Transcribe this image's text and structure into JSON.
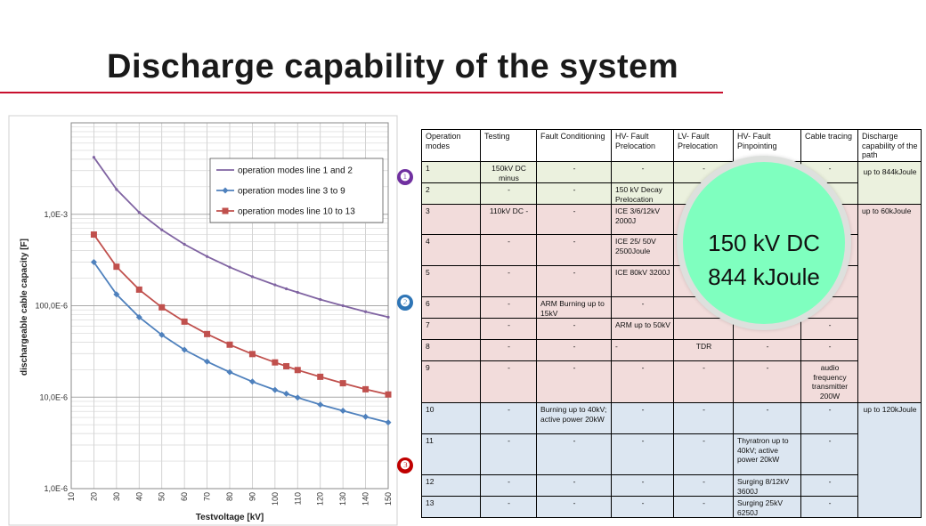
{
  "title": "Discharge capability of the system",
  "markers": [
    {
      "label": "❶",
      "color": "#7030a0"
    },
    {
      "label": "❷",
      "color": "#2e75b6"
    },
    {
      "label": "❸",
      "color": "#c00000"
    }
  ],
  "highlight": {
    "line1": "150 kV DC",
    "line2": "844 kJoule"
  },
  "chart_data": {
    "type": "line",
    "title": "",
    "xlabel": "Testvoltage [kV]",
    "ylabel": "dischargeable cable capacity [F]",
    "xlim": [
      10,
      150
    ],
    "ylim": [
      1e-06,
      0.01
    ],
    "yscale": "log",
    "xticks": [
      "10",
      "20",
      "30",
      "40",
      "50",
      "60",
      "70",
      "80",
      "90",
      "100",
      "110",
      "120",
      "130",
      "140",
      "150"
    ],
    "yticks": [
      "1,0E-6",
      "10,0E-6",
      "100,0E-6",
      "1,0E-3"
    ],
    "legend_position": "top-right",
    "grid": true,
    "series": [
      {
        "name": "operation modes line 1 and 2",
        "color": "#8064a2",
        "marker": "none",
        "x": [
          20,
          30,
          40,
          50,
          60,
          70,
          80,
          90,
          100,
          105,
          110,
          120,
          130,
          140,
          150
        ],
        "y": [
          0.0042,
          0.00187,
          0.00105,
          0.000675,
          0.000469,
          0.000345,
          0.000264,
          0.000208,
          0.000169,
          0.000153,
          0.00014,
          0.000117,
          0.0001,
          8.6e-05,
          7.5e-05
        ]
      },
      {
        "name": "operation modes line  3 to 9",
        "color": "#4f81bd",
        "marker": "diamond",
        "x": [
          20,
          30,
          40,
          50,
          60,
          70,
          80,
          90,
          100,
          105,
          110,
          120,
          130,
          140,
          150
        ],
        "y": [
          0.0003,
          0.000133,
          7.5e-05,
          4.8e-05,
          3.3e-05,
          2.45e-05,
          1.88e-05,
          1.48e-05,
          1.2e-05,
          1.09e-05,
          9.9e-06,
          8.3e-06,
          7.1e-06,
          6.1e-06,
          5.3e-06
        ]
      },
      {
        "name": "operation modes line 10 to 13",
        "color": "#c0504d",
        "marker": "square",
        "x": [
          20,
          30,
          40,
          50,
          60,
          70,
          80,
          90,
          100,
          105,
          110,
          120,
          130,
          140,
          150
        ],
        "y": [
          0.0006,
          0.000267,
          0.00015,
          9.6e-05,
          6.7e-05,
          4.9e-05,
          3.75e-05,
          2.96e-05,
          2.4e-05,
          2.18e-05,
          1.98e-05,
          1.67e-05,
          1.42e-05,
          1.22e-05,
          1.07e-05
        ]
      }
    ]
  },
  "table": {
    "headers": [
      "Operation modes",
      "Testing",
      "Fault Conditioning",
      "HV- Fault Prelocation",
      "LV- Fault Prelocation",
      "HV- Fault Pinpointing",
      "Cable tracing",
      "Discharge capability of the path"
    ],
    "rows": [
      [
        "1",
        "150kV DC minus",
        "-",
        "-",
        "-",
        "",
        "-",
        ""
      ],
      [
        "2",
        "-",
        "-",
        "150 kV Decay Prelocation",
        "",
        "",
        "",
        ""
      ],
      [
        "3",
        "110kV DC -",
        "-",
        "ICE 3/6/12kV 2000J",
        "",
        "",
        "",
        ""
      ],
      [
        "4",
        "-",
        "-",
        "ICE 25/ 50V 2500Joule",
        "",
        "",
        "",
        ""
      ],
      [
        "5",
        "-",
        "-",
        "ICE 80kV 3200J",
        "",
        "",
        "",
        ""
      ],
      [
        "6",
        "-",
        "ARM Burning up to 15kV",
        "-",
        "",
        "",
        "",
        ""
      ],
      [
        "7",
        "-",
        "-",
        "ARM up to 50kV",
        "",
        "",
        "-",
        ""
      ],
      [
        "8",
        "-",
        "-",
        "-",
        "TDR",
        "-",
        "-",
        ""
      ],
      [
        "9",
        "-",
        "-",
        "-",
        "-",
        "-",
        "audio frequency transmitter 200W",
        ""
      ],
      [
        "10",
        "-",
        "Burning up to 40kV; active power 20kW",
        "-",
        "-",
        "-",
        "-",
        ""
      ],
      [
        "11",
        "-",
        "-",
        "-",
        "-",
        "Thyratron up to 40kV; active power 20kW",
        "-",
        ""
      ],
      [
        "12",
        "-",
        "-",
        "-",
        "-",
        "Surging 8/12kV 3600J",
        "-",
        ""
      ],
      [
        "13",
        "-",
        "-",
        "-",
        "-",
        "Surging 25kV 6250J",
        "-",
        ""
      ]
    ],
    "capability": [
      "up to 844kJoule",
      "up to 60kJoule",
      "up to 120kJoule"
    ]
  }
}
